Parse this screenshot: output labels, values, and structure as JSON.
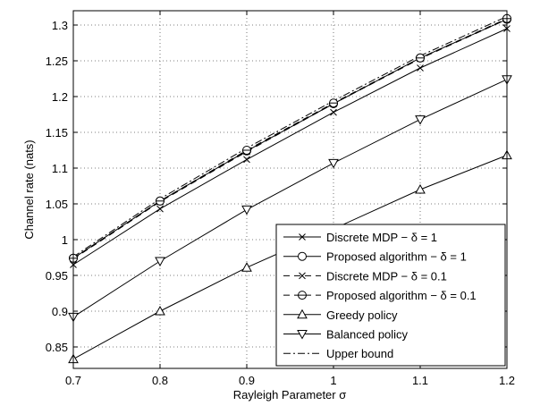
{
  "chart_data": {
    "type": "line",
    "title": "",
    "xlabel": "Rayleigh Parameter σ",
    "ylabel": "Channel rate (nats)",
    "xlim": [
      0.7,
      1.2
    ],
    "ylim": [
      0.82,
      1.32
    ],
    "x_ticks": [
      0.7,
      0.8,
      0.9,
      1.0,
      1.1,
      1.2
    ],
    "x_tick_labels": [
      "0.7",
      "0.8",
      "0.9",
      "1",
      "1.1",
      "1.2"
    ],
    "y_ticks": [
      0.85,
      0.9,
      0.95,
      1.0,
      1.05,
      1.1,
      1.15,
      1.2,
      1.25,
      1.3
    ],
    "y_tick_labels": [
      "0.85",
      "0.9",
      "0.95",
      "1",
      "1.05",
      "1.1",
      "1.15",
      "1.2",
      "1.25",
      "1.3"
    ],
    "grid": true,
    "legend_position": "bottom-right",
    "x": [
      0.7,
      0.8,
      0.9,
      1.0,
      1.1,
      1.2
    ],
    "series": [
      {
        "name": "Discrete MDP − δ = 1",
        "values": [
          0.965,
          1.043,
          1.112,
          1.178,
          1.24,
          1.295
        ],
        "line": "solid",
        "marker": "x"
      },
      {
        "name": "Proposed algorithm − δ = 1",
        "values": [
          0.974,
          1.054,
          1.124,
          1.19,
          1.254,
          1.308
        ],
        "line": "solid",
        "marker": "circle"
      },
      {
        "name": "Discrete MDP − δ = 0.1",
        "values": [
          0.973,
          1.053,
          1.123,
          1.19,
          1.253,
          1.308
        ],
        "line": "dashed",
        "marker": "x"
      },
      {
        "name": "Proposed algorithm − δ = 0.1",
        "values": [
          0.974,
          1.054,
          1.125,
          1.191,
          1.254,
          1.309
        ],
        "line": "dashed",
        "marker": "circle-minus"
      },
      {
        "name": "Greedy policy",
        "values": [
          0.833,
          0.9,
          0.961,
          1.015,
          1.07,
          1.118
        ],
        "line": "solid",
        "marker": "triangle-up"
      },
      {
        "name": "Balanced policy",
        "values": [
          0.892,
          0.97,
          1.042,
          1.107,
          1.168,
          1.224
        ],
        "line": "solid",
        "marker": "triangle-down"
      },
      {
        "name": "Upper bound",
        "values": [
          0.976,
          1.057,
          1.128,
          1.194,
          1.257,
          1.312
        ],
        "line": "dashdot",
        "marker": "none"
      }
    ]
  }
}
